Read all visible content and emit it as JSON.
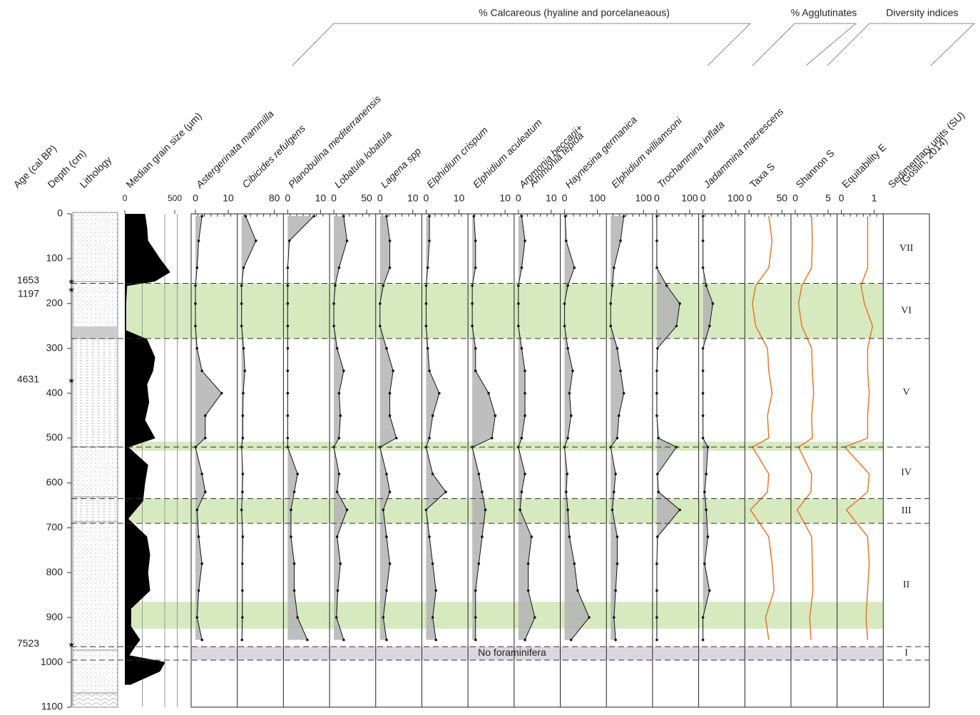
{
  "chart_data": {
    "type": "stratigraphic",
    "group_headers": [
      "% Calcareous (hyaline and porcelaneaous)",
      "% Agglutinates",
      "Diversity indices"
    ],
    "age_title": "Age (cal BP)",
    "depth_title": "Depth (cm)",
    "lithology_title": "Lithology",
    "ylim": [
      0,
      1100
    ],
    "yticks": [
      0,
      100,
      200,
      300,
      400,
      500,
      600,
      700,
      800,
      900,
      1000,
      1100
    ],
    "ages": [
      {
        "age": 1653,
        "depth": 152
      },
      {
        "age": 1197,
        "depth": 170
      },
      {
        "age": 4631,
        "depth": 373
      },
      {
        "age": 7523,
        "depth": 962
      }
    ],
    "grain_size": {
      "label": "Median grain size (µm)",
      "xlim": [
        0,
        500
      ],
      "xticks": [
        0,
        500
      ],
      "color": "#000000",
      "depths": [
        0,
        30,
        60,
        100,
        130,
        150,
        160,
        200,
        260,
        280,
        320,
        350,
        380,
        420,
        460,
        500,
        520,
        560,
        600,
        640,
        680,
        720,
        760,
        800,
        840,
        880,
        920,
        950,
        965,
        985,
        1000,
        1020,
        1050
      ],
      "values": [
        200,
        220,
        230,
        350,
        450,
        300,
        20,
        10,
        10,
        220,
        300,
        280,
        220,
        240,
        200,
        300,
        30,
        230,
        200,
        180,
        30,
        220,
        250,
        230,
        250,
        60,
        60,
        150,
        100,
        40,
        400,
        350,
        50
      ]
    },
    "depths": [
      5,
      60,
      120,
      160,
      200,
      250,
      300,
      350,
      400,
      450,
      500,
      520,
      580,
      620,
      660,
      720,
      780,
      840,
      900,
      950
    ],
    "panels": [
      {
        "label": [
          "Astergerinata mammilla"
        ],
        "xlim": [
          0,
          10
        ],
        "xticks": [
          0,
          10
        ],
        "style": "area",
        "color": "#b3b3b3",
        "values": [
          2,
          1,
          0.5,
          0,
          0,
          0,
          0.5,
          2,
          8,
          3,
          3,
          0,
          2,
          3,
          0.5,
          1,
          2,
          1,
          0.5,
          2
        ]
      },
      {
        "label": [
          "Cibicides refulgens"
        ],
        "xlim": [
          0,
          80
        ],
        "xticks": [
          80
        ],
        "style": "area",
        "color": "#b3b3b3",
        "values": [
          10,
          35,
          5,
          0,
          0,
          0,
          5,
          8,
          4,
          3,
          3,
          0,
          3,
          2,
          0,
          3,
          2,
          2,
          2,
          1
        ]
      },
      {
        "label": [
          "Planobulina mediterranensis"
        ],
        "xlim": [
          0,
          10
        ],
        "xticks": [
          0,
          10
        ],
        "style": "area",
        "color": "#b3b3b3",
        "values": [
          8,
          0.5,
          0,
          0,
          0,
          0,
          0,
          0,
          0,
          0,
          0,
          0,
          3,
          2,
          1,
          1,
          2,
          2,
          3,
          6
        ]
      },
      {
        "label": [
          "Lobatula lobatula"
        ],
        "xlim": [
          0,
          50
        ],
        "xticks": [
          0,
          50
        ],
        "style": "area",
        "color": "#b3b3b3",
        "values": [
          15,
          20,
          8,
          2,
          0,
          0,
          5,
          15,
          8,
          10,
          8,
          0,
          8,
          5,
          20,
          5,
          10,
          6,
          4,
          15
        ]
      },
      {
        "label": [
          "Lagena spp"
        ],
        "xlim": [
          0,
          10
        ],
        "xticks": [
          0,
          10
        ],
        "style": "area",
        "color": "#b3b3b3",
        "values": [
          2,
          3,
          3,
          1,
          0,
          0,
          2,
          4,
          3,
          3,
          5,
          0,
          2,
          3,
          1,
          2,
          3,
          2,
          1,
          2
        ]
      },
      {
        "label": [
          "Elphidium crispum"
        ],
        "xlim": [
          0,
          10
        ],
        "xticks": [
          0,
          10
        ],
        "style": "area",
        "color": "#b3b3b3",
        "values": [
          1,
          1,
          0.5,
          0,
          0,
          0,
          0.5,
          1,
          4,
          2,
          1,
          0,
          2,
          6,
          0,
          1,
          2,
          3,
          2,
          3
        ]
      },
      {
        "label": [
          "Elphidium aculeatum"
        ],
        "xlim": [
          0,
          10
        ],
        "xticks": [
          10
        ],
        "style": "area",
        "color": "#b3b3b3",
        "values": [
          0.5,
          1,
          1,
          0,
          0,
          0,
          1,
          1,
          5,
          7,
          6,
          0,
          2,
          3,
          4,
          3,
          2,
          1,
          1,
          1
        ]
      },
      {
        "label": [
          "Ammonia beccarii+",
          "Ammonia tepida"
        ],
        "xlim": [
          0,
          10
        ],
        "xticks": [
          0,
          10
        ],
        "style": "area",
        "color": "#b3b3b3",
        "values": [
          1,
          2,
          1,
          0,
          0,
          0,
          1,
          2,
          2,
          2,
          1,
          0,
          2,
          1,
          0.5,
          4,
          3,
          3,
          5,
          2
        ]
      },
      {
        "label": [
          "Haynesina germanica"
        ],
        "xlim": [
          0,
          100
        ],
        "xticks": [
          0,
          100
        ],
        "style": "area",
        "color": "#b3b3b3",
        "values": [
          2,
          5,
          30,
          10,
          0,
          0,
          10,
          25,
          15,
          20,
          10,
          0,
          8,
          5,
          10,
          15,
          30,
          40,
          75,
          20
        ]
      },
      {
        "label": [
          "Elphidium williamsoni"
        ],
        "xlim": [
          0,
          100
        ],
        "xticks": [
          100
        ],
        "style": "area",
        "color": "#b3b3b3",
        "values": [
          40,
          30,
          10,
          5,
          0,
          0,
          20,
          30,
          40,
          25,
          20,
          0,
          15,
          10,
          5,
          20,
          20,
          15,
          10,
          15
        ]
      },
      {
        "label": [
          "Trochammina inflata"
        ],
        "xlim": [
          0,
          100
        ],
        "xticks": [
          0,
          100
        ],
        "style": "area",
        "color": "#b3b3b3",
        "values": [
          0,
          0,
          0,
          30,
          70,
          60,
          2,
          0,
          0,
          0,
          5,
          60,
          2,
          5,
          70,
          2,
          0,
          0,
          0,
          0
        ]
      },
      {
        "label": [
          "Jadammina macrescens"
        ],
        "xlim": [
          0,
          100
        ],
        "xticks": [
          0,
          100
        ],
        "style": "area",
        "color": "#b3b3b3",
        "values": [
          0,
          0,
          0,
          10,
          30,
          20,
          0,
          0,
          0,
          0,
          0,
          15,
          10,
          5,
          10,
          15,
          5,
          20,
          0,
          0
        ]
      },
      {
        "label": [
          "Taxa S"
        ],
        "xlim": [
          0,
          50
        ],
        "xticks": [
          0,
          50
        ],
        "style": "line",
        "color": "#e8762c",
        "values": [
          30,
          35,
          30,
          10,
          5,
          10,
          28,
          30,
          35,
          28,
          30,
          5,
          30,
          28,
          2,
          30,
          35,
          38,
          25,
          30
        ]
      },
      {
        "label": [
          "Shannon S"
        ],
        "xlim": [
          0,
          5
        ],
        "xticks": [
          0,
          5
        ],
        "style": "line",
        "color": "#e8762c",
        "values": [
          2.5,
          2.6,
          2.5,
          1,
          0.5,
          1,
          2.5,
          2.6,
          2.8,
          2.5,
          2.6,
          0.5,
          2.5,
          2.4,
          0.3,
          2.5,
          2.6,
          2.7,
          2.2,
          2.4
        ]
      },
      {
        "label": [
          "Equitability E"
        ],
        "xlim": [
          0,
          1
        ],
        "xticks": [
          0,
          1
        ],
        "style": "line",
        "color": "#e8762c",
        "values": [
          0.8,
          0.8,
          0.8,
          0.6,
          0.7,
          0.95,
          0.8,
          0.8,
          0.85,
          0.8,
          0.8,
          0.1,
          0.85,
          0.8,
          0.15,
          0.8,
          0.85,
          0.8,
          0.75,
          0.8
        ]
      }
    ],
    "units": {
      "title": [
        "Sedimentary units (SU)",
        "(Goslin, 2014)"
      ],
      "names": [
        "VII",
        "VI",
        "V",
        "IV",
        "III",
        "II",
        "I"
      ],
      "bounds": [
        0,
        155,
        278,
        520,
        635,
        690,
        965,
        995
      ]
    },
    "highlight_bands": {
      "color": "#d7e9bf",
      "ranges": [
        [
          155,
          278
        ],
        [
          508,
          528
        ],
        [
          635,
          690
        ],
        [
          865,
          925
        ]
      ]
    },
    "barren_band": {
      "label": "No foraminifera",
      "color": "#dcd6de",
      "range": [
        965,
        995
      ]
    }
  }
}
